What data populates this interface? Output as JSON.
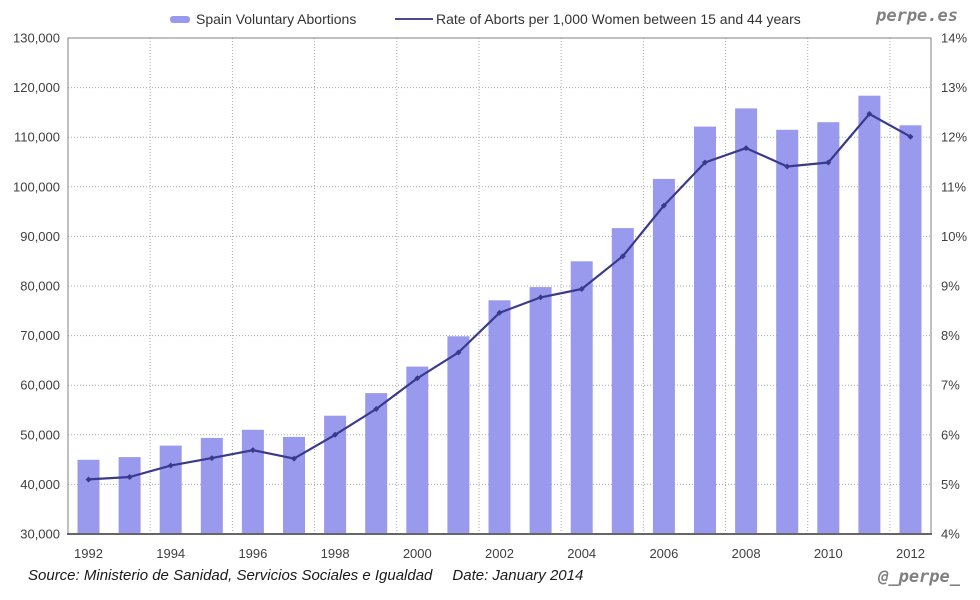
{
  "branding": {
    "site_label": "perpe.es",
    "twitter_handle": "@_perpe_"
  },
  "legend": {
    "bar_label": "Spain Voluntary Abortions",
    "line_label": "Rate of Aborts per 1,000 Women between 15 and 44 years"
  },
  "footer": {
    "source_label": "Source: Ministerio de Sanidad, Servicios Sociales e Igualdad",
    "date_label": "Date: January 2014"
  },
  "colors": {
    "bar_fill": "#9999ee",
    "line_stroke": "#3a3a8c",
    "grid": "#ababab",
    "plot_border": "#808080",
    "axis_bottom": "#666666",
    "axis_text": "#404040",
    "brand_gray": "#808080"
  },
  "chart_data": {
    "type": "combo-bar-line",
    "categories": [
      1992,
      1993,
      1994,
      1995,
      1996,
      1997,
      1998,
      1999,
      2000,
      2001,
      2002,
      2003,
      2004,
      2005,
      2006,
      2007,
      2008,
      2009,
      2010,
      2011,
      2012
    ],
    "series": [
      {
        "name": "Spain Voluntary Abortions",
        "type": "bar",
        "axis": "left",
        "color": "#9999ee",
        "values": [
          44962,
          45503,
          47832,
          49367,
          51002,
          49578,
          53847,
          58399,
          63756,
          69857,
          77125,
          79788,
          84985,
          91664,
          101592,
          112138,
          115812,
          111482,
          113031,
          118359,
          112390
        ]
      },
      {
        "name": "Rate of Aborts per 1,000 Women between 15 and 44 years",
        "type": "line",
        "axis": "right",
        "color": "#3a3a8c",
        "values": [
          5.1,
          5.15,
          5.38,
          5.53,
          5.69,
          5.52,
          6.0,
          6.52,
          7.14,
          7.66,
          8.46,
          8.77,
          8.94,
          9.6,
          10.62,
          11.49,
          11.78,
          11.41,
          11.49,
          12.47,
          12.01
        ]
      }
    ],
    "left_axis": {
      "min": 30000,
      "max": 130000,
      "step": 10000,
      "tick_labels": [
        "30,000",
        "40,000",
        "50,000",
        "60,000",
        "70,000",
        "80,000",
        "90,000",
        "100,000",
        "110,000",
        "120,000",
        "130,000"
      ]
    },
    "right_axis": {
      "min": 4,
      "max": 14,
      "step": 1,
      "tick_labels": [
        "4%",
        "5%",
        "6%",
        "7%",
        "8%",
        "9%",
        "10%",
        "11%",
        "12%",
        "13%",
        "14%"
      ]
    },
    "x_axis": {
      "label_every_n": 2,
      "tick_labels": [
        "1992",
        "1994",
        "1996",
        "1998",
        "2000",
        "2002",
        "2004",
        "2006",
        "2008",
        "2010",
        "2012"
      ]
    },
    "grid": {
      "horizontal": "dotted",
      "vertical": "dotted-every-2-categories"
    },
    "legend_position": "top"
  }
}
